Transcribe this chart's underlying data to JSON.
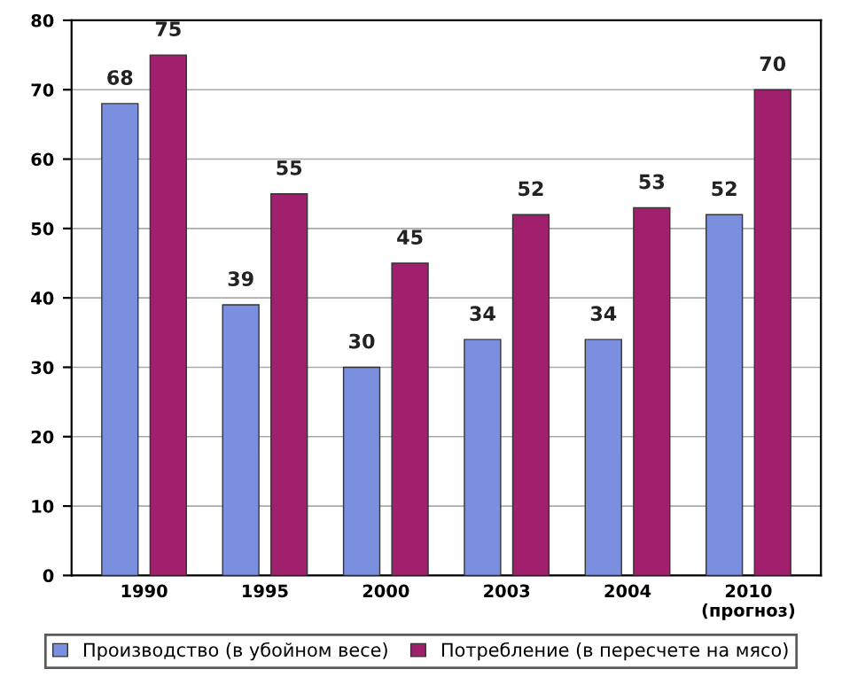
{
  "chart_data": {
    "type": "bar",
    "categories": [
      "1990",
      "1995",
      "2000",
      "2003",
      "2004",
      "2010\n(прогноз)"
    ],
    "series": [
      {
        "name": "Производство (в убойном весе)",
        "color": "#7b8fe0",
        "values": [
          68,
          39,
          30,
          34,
          34,
          52
        ]
      },
      {
        "name": "Потребление (в пересчете на мясо)",
        "color": "#a0206e",
        "values": [
          75,
          55,
          45,
          52,
          53,
          70
        ]
      }
    ],
    "ylim": [
      0,
      80
    ],
    "yticks": [
      0,
      10,
      20,
      30,
      40,
      50,
      60,
      70,
      80
    ],
    "grid": "y",
    "legend": "bottom",
    "data_labels": true
  }
}
